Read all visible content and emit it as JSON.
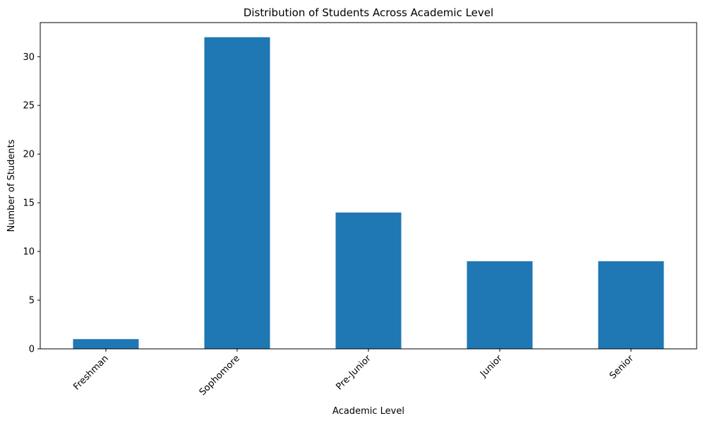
{
  "chart_data": {
    "type": "bar",
    "title": "Distribution of Students Across Academic Level",
    "xlabel": "Academic Level",
    "ylabel": "Number of Students",
    "categories": [
      "Freshman",
      "Sophomore",
      "Pre-Junior",
      "Junior",
      "Senior"
    ],
    "values": [
      1,
      32,
      14,
      9,
      9
    ],
    "ylim": [
      0,
      33.5
    ],
    "yticks": [
      0,
      5,
      10,
      15,
      20,
      25,
      30
    ],
    "bar_color": "#1f77b4",
    "grid": false,
    "legend": "none"
  }
}
